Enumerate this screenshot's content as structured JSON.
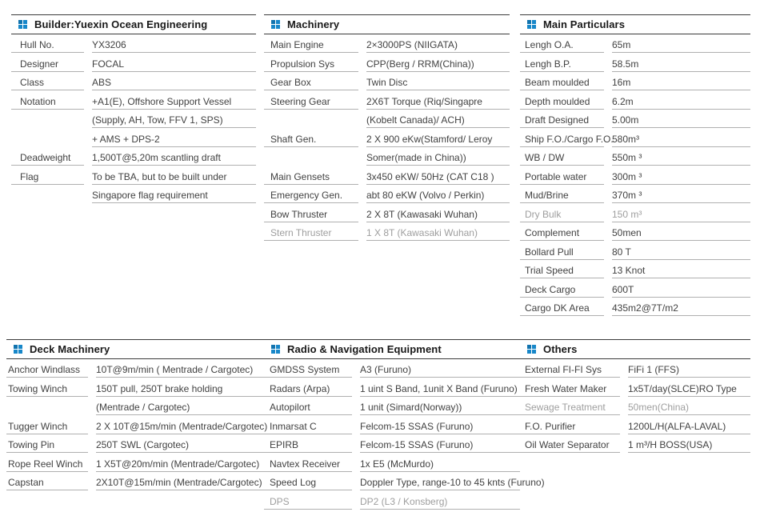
{
  "accent_color": "#1787c9",
  "icon_name": "grid-squares-icon",
  "sections": [
    {
      "id": "builder",
      "title": "Builder:Yuexin Ocean Engineering",
      "rows": [
        {
          "label": "Hull No.",
          "value": "YX3206"
        },
        {
          "label": "Designer",
          "value": "FOCAL"
        },
        {
          "label": "Class",
          "value": "ABS"
        },
        {
          "label": "Notation",
          "value": "+A1(E), Offshore Support Vessel"
        },
        {
          "label": "",
          "value": "(Supply, AH, Tow, FFV 1, SPS)"
        },
        {
          "label": "",
          "value": "+ AMS + DPS-2"
        },
        {
          "label": "Deadweight",
          "value": "1,500T@5,20m scantling draft"
        },
        {
          "label": "Flag",
          "value": "To be TBA, but to be built under"
        },
        {
          "label": "",
          "value": "Singapore flag requirement"
        }
      ]
    },
    {
      "id": "machinery",
      "title": "Machinery",
      "rows": [
        {
          "label": "Main Engine",
          "value": "2×3000PS (NIIGATA)"
        },
        {
          "label": "Propulsion Sys",
          "value": "CPP(Berg / RRM(China))"
        },
        {
          "label": "Gear Box",
          "value": "Twin Disc"
        },
        {
          "label": "Steering Gear",
          "value": "2X6T Torque (Riq/Singapre"
        },
        {
          "label": "",
          "value": "(Kobelt Canada)/ ACH)"
        },
        {
          "label": "Shaft Gen.",
          "value": "2 X 900 eKw(Stamford/ Leroy"
        },
        {
          "label": "",
          "value": "Somer(made in China))"
        },
        {
          "label": "Main Gensets",
          "value": "3x450 eKW/ 50Hz (CAT C18 )"
        },
        {
          "label": "Emergency Gen.",
          "value": "abt 80 eKW (Volvo / Perkin)"
        },
        {
          "label": "Bow Thruster",
          "value": "2 X 8T (Kawasaki Wuhan)"
        },
        {
          "label": "Stern Thruster",
          "value": "1 X 8T (Kawasaki Wuhan)",
          "muted": true
        }
      ]
    },
    {
      "id": "particulars",
      "title": "Main Particulars",
      "rows": [
        {
          "label": "Lengh O.A.",
          "value": "65m"
        },
        {
          "label": "Lengh B.P.",
          "value": "58.5m"
        },
        {
          "label": "Beam moulded",
          "value": "16m"
        },
        {
          "label": "Depth moulded",
          "value": "6.2m"
        },
        {
          "label": "Draft Designed",
          "value": "5.00m"
        },
        {
          "label": "Ship F.O./Cargo F.O.",
          "value": "580m³"
        },
        {
          "label": "WB / DW",
          "value": "550m ³"
        },
        {
          "label": "Portable water",
          "value": "300m ³"
        },
        {
          "label": "Mud/Brine",
          "value": "370m ³"
        },
        {
          "label": "Dry Bulk",
          "value": "150 m³",
          "muted": true
        },
        {
          "label": "Complement",
          "value": "50men"
        },
        {
          "label": "Bollard Pull",
          "value": "80 T"
        },
        {
          "label": "Trial Speed",
          "value": "13 Knot"
        },
        {
          "label": "Deck Cargo",
          "value": "600T"
        },
        {
          "label": "Cargo DK Area",
          "value": "435m2@7T/m2"
        }
      ]
    },
    {
      "id": "deck",
      "title": "Deck Machinery",
      "rows": [
        {
          "label": "Anchor Windlass",
          "value": "10T@9m/min ( Mentrade / Cargotec)"
        },
        {
          "label": "Towing Winch",
          "value": "150T pull, 250T brake holding"
        },
        {
          "label": "",
          "value": "(Mentrade / Cargotec)"
        },
        {
          "label": "Tugger Winch",
          "value": "2 X 10T@15m/min (Mentrade/Cargotec)"
        },
        {
          "label": "Towing Pin",
          "value": "250T SWL (Cargotec)"
        },
        {
          "label": "Rope Reel Winch",
          "value": "1 X5T@20m/min (Mentrade/Cargotec)"
        },
        {
          "label": "Capstan",
          "value": "2X10T@15m/min (Mentrade/Cargotec)"
        }
      ]
    },
    {
      "id": "radio",
      "title": "Radio & Navigation Equipment",
      "rows": [
        {
          "label": "GMDSS System",
          "value": "A3 (Furuno)"
        },
        {
          "label": "Radars (Arpa)",
          "value": "1 uint S Band, 1unit X Band (Furuno)"
        },
        {
          "label": "Autopilort",
          "value": "1 unit (Simard(Norway))"
        },
        {
          "label": "Inmarsat C",
          "value": "Felcom-15 SSAS (Furuno)"
        },
        {
          "label": "EPIRB",
          "value": "Felcom-15 SSAS (Furuno)"
        },
        {
          "label": "Navtex Receiver",
          "value": "1x E5 (McMurdo)"
        },
        {
          "label": "Speed Log",
          "value": "Doppler Type, range-10 to 45 knts (Furuno)"
        },
        {
          "label": "DPS",
          "value": "DP2 (L3 / Konsberg)",
          "muted": true
        }
      ]
    },
    {
      "id": "others",
      "title": "Others",
      "rows": [
        {
          "label": "External FI-FI Sys",
          "value": "FiFi 1 (FFS)"
        },
        {
          "label": "Fresh Water Maker",
          "value": "1x5T/day(SLCE)RO Type"
        },
        {
          "label": "Sewage Treatment",
          "value": "50men(China)",
          "muted": true
        },
        {
          "label": "F.O. Purifier",
          "value": "1200L/H(ALFA-LAVAL)"
        },
        {
          "label": "Oil Water Separator",
          "value": "1 m³/H BOSS(USA)"
        }
      ]
    }
  ]
}
